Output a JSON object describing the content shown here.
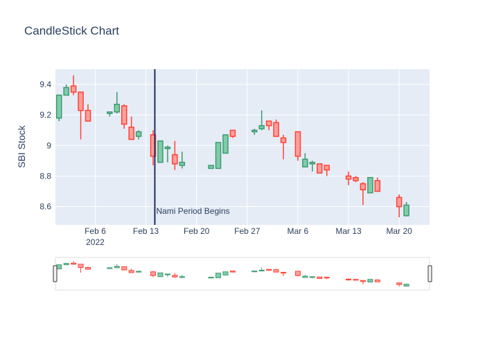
{
  "chart_data": {
    "type": "candlestick",
    "title": "CandleStick Chart",
    "ylabel": "SBI Stock",
    "xlabel": "",
    "ylim": [
      8.48,
      9.5
    ],
    "yticks": [
      8.6,
      8.8,
      9.0,
      9.2,
      9.4
    ],
    "ytick_labels": [
      "8.6",
      "8.8",
      "9",
      "9.2",
      "9.4"
    ],
    "xticks": [
      {
        "label": "Feb 6",
        "sub": "2022",
        "day": 6
      },
      {
        "label": "Feb 13",
        "sub": "",
        "day": 13
      },
      {
        "label": "Feb 20",
        "sub": "",
        "day": 20
      },
      {
        "label": "Feb 27",
        "sub": "",
        "day": 27
      },
      {
        "label": "Mar 6",
        "sub": "",
        "day": 34
      },
      {
        "label": "Mar 13",
        "sub": "",
        "day": 41
      },
      {
        "label": "Mar 20",
        "sub": "",
        "day": 48
      }
    ],
    "colors": {
      "increasing": "#3d9970",
      "decreasing": "#ff4136",
      "increasing_fill": "#80ccaa",
      "decreasing_fill": "#ff9f9a"
    },
    "grid": true,
    "range_slider": true,
    "candles": [
      {
        "date": "2022-02-01",
        "open": 9.18,
        "high": 9.33,
        "low": 9.16,
        "close": 9.33
      },
      {
        "date": "2022-02-02",
        "open": 9.33,
        "high": 9.4,
        "low": 9.33,
        "close": 9.38
      },
      {
        "date": "2022-02-03",
        "open": 9.39,
        "high": 9.46,
        "low": 9.33,
        "close": 9.35
      },
      {
        "date": "2022-02-04",
        "open": 9.35,
        "high": 9.35,
        "low": 9.04,
        "close": 9.23
      },
      {
        "date": "2022-02-05",
        "open": 9.23,
        "high": 9.27,
        "low": 9.16,
        "close": 9.16
      },
      {
        "date": "2022-02-08",
        "open": 9.21,
        "high": 9.22,
        "low": 9.19,
        "close": 9.22
      },
      {
        "date": "2022-02-09",
        "open": 9.22,
        "high": 9.35,
        "low": 9.21,
        "close": 9.27
      },
      {
        "date": "2022-02-10",
        "open": 9.26,
        "high": 9.27,
        "low": 9.11,
        "close": 9.14
      },
      {
        "date": "2022-02-11",
        "open": 9.12,
        "high": 9.19,
        "low": 9.04,
        "close": 9.04
      },
      {
        "date": "2022-02-12",
        "open": 9.06,
        "high": 9.1,
        "low": 9.04,
        "close": 9.09
      },
      {
        "date": "2022-02-14",
        "open": 9.07,
        "high": 9.1,
        "low": 8.87,
        "close": 8.93
      },
      {
        "date": "2022-02-15",
        "open": 8.89,
        "high": 9.03,
        "low": 8.89,
        "close": 9.03
      },
      {
        "date": "2022-02-16",
        "open": 8.98,
        "high": 9.0,
        "low": 8.89,
        "close": 8.99
      },
      {
        "date": "2022-02-17",
        "open": 8.94,
        "high": 9.03,
        "low": 8.84,
        "close": 8.88
      },
      {
        "date": "2022-02-18",
        "open": 8.87,
        "high": 8.96,
        "low": 8.85,
        "close": 8.89
      },
      {
        "date": "2022-02-22",
        "open": 8.85,
        "high": 8.87,
        "low": 8.85,
        "close": 8.87
      },
      {
        "date": "2022-02-23",
        "open": 8.85,
        "high": 9.02,
        "low": 8.85,
        "close": 9.02
      },
      {
        "date": "2022-02-24",
        "open": 8.95,
        "high": 9.07,
        "low": 8.95,
        "close": 9.07
      },
      {
        "date": "2022-02-25",
        "open": 9.1,
        "high": 9.1,
        "low": 9.05,
        "close": 9.06
      },
      {
        "date": "2022-02-28",
        "open": 9.09,
        "high": 9.11,
        "low": 9.07,
        "close": 9.1
      },
      {
        "date": "2022-03-01",
        "open": 9.11,
        "high": 9.23,
        "low": 9.1,
        "close": 9.13
      },
      {
        "date": "2022-03-02",
        "open": 9.16,
        "high": 9.16,
        "low": 9.1,
        "close": 9.13
      },
      {
        "date": "2022-03-03",
        "open": 9.15,
        "high": 9.17,
        "low": 9.06,
        "close": 9.06
      },
      {
        "date": "2022-03-04",
        "open": 9.05,
        "high": 9.07,
        "low": 8.91,
        "close": 9.02
      },
      {
        "date": "2022-03-06",
        "open": 9.09,
        "high": 9.09,
        "low": 8.9,
        "close": 8.93
      },
      {
        "date": "2022-03-07",
        "open": 8.86,
        "high": 8.95,
        "low": 8.86,
        "close": 8.91
      },
      {
        "date": "2022-03-08",
        "open": 8.88,
        "high": 8.9,
        "low": 8.83,
        "close": 8.89
      },
      {
        "date": "2022-03-09",
        "open": 8.88,
        "high": 8.88,
        "low": 8.82,
        "close": 8.82
      },
      {
        "date": "2022-03-10",
        "open": 8.87,
        "high": 8.87,
        "low": 8.8,
        "close": 8.84
      },
      {
        "date": "2022-03-13",
        "open": 8.8,
        "high": 8.83,
        "low": 8.74,
        "close": 8.78
      },
      {
        "date": "2022-03-14",
        "open": 8.79,
        "high": 8.8,
        "low": 8.76,
        "close": 8.77
      },
      {
        "date": "2022-03-15",
        "open": 8.75,
        "high": 8.76,
        "low": 8.61,
        "close": 8.71
      },
      {
        "date": "2022-03-16",
        "open": 8.69,
        "high": 8.79,
        "low": 8.69,
        "close": 8.79
      },
      {
        "date": "2022-03-17",
        "open": 8.77,
        "high": 8.79,
        "low": 8.7,
        "close": 8.7
      },
      {
        "date": "2022-03-20",
        "open": 8.66,
        "high": 8.68,
        "low": 8.53,
        "close": 8.6
      },
      {
        "date": "2022-03-21",
        "open": 8.54,
        "high": 8.63,
        "low": 8.54,
        "close": 8.61
      }
    ],
    "annotation": {
      "date": "2022-02-15",
      "text": "Nami Period Begins"
    }
  }
}
